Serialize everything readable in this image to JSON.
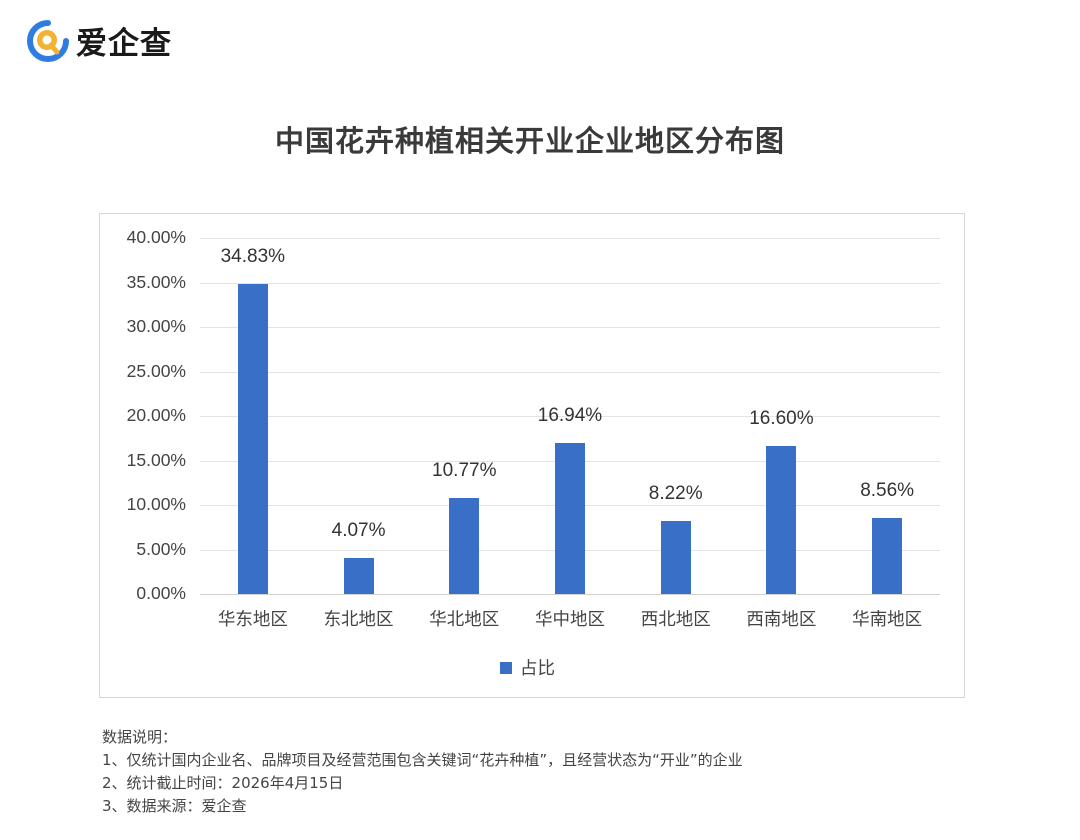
{
  "brand": {
    "name": "爱企查",
    "logo_icon": "aiqicha-magnifier-logo",
    "colors": {
      "ring": "#2f7de1",
      "handle": "#f2b233"
    }
  },
  "title": "中国花卉种植相关开业企业地区分布图",
  "chart_data": {
    "type": "bar",
    "title": "中国花卉种植相关开业企业地区分布图",
    "categories": [
      "华东地区",
      "东北地区",
      "华北地区",
      "华中地区",
      "西北地区",
      "西南地区",
      "华南地区"
    ],
    "series": [
      {
        "name": "占比",
        "values": [
          34.83,
          4.07,
          10.77,
          16.94,
          8.22,
          16.6,
          8.56
        ],
        "color": "#3a6fc8"
      }
    ],
    "data_labels": [
      "34.83%",
      "4.07%",
      "10.77%",
      "16.94%",
      "8.22%",
      "16.60%",
      "8.56%"
    ],
    "xlabel": "",
    "ylabel": "",
    "ylim": [
      0,
      40
    ],
    "yticks": [
      "0.00%",
      "5.00%",
      "10.00%",
      "15.00%",
      "20.00%",
      "25.00%",
      "30.00%",
      "35.00%",
      "40.00%"
    ],
    "grid": true,
    "legend_position": "bottom"
  },
  "notes": {
    "heading": "数据说明：",
    "items": [
      "1、仅统计国内企业名、品牌项目及经营范围包含关键词“花卉种植”，且经营状态为“开业”的企业",
      "2、统计截止时间：2026年4月15日",
      "3、数据来源：爱企查"
    ]
  }
}
